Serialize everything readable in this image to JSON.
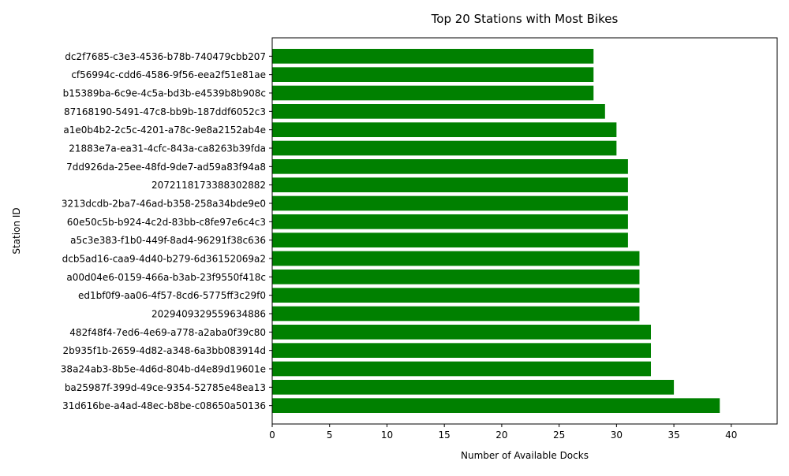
{
  "chart_data": {
    "type": "bar",
    "orientation": "horizontal",
    "title": "Top 20 Stations with Most Bikes",
    "xlabel": "Number of Available Docks",
    "ylabel": "Station ID",
    "xlim": [
      0,
      44
    ],
    "xticks": [
      "0",
      "5",
      "10",
      "15",
      "20",
      "25",
      "30",
      "35",
      "40"
    ],
    "grid": false,
    "bar_color": "#008000",
    "categories": [
      "31d616be-a4ad-48ec-b8be-c08650a50136",
      "ba25987f-399d-49ce-9354-52785e48ea13",
      "38a24ab3-8b5e-4d6d-804b-d4e89d19601e",
      "2b935f1b-2659-4d82-a348-6a3bb083914d",
      "482f48f4-7ed6-4e69-a778-a2aba0f39c80",
      "2029409329559634886",
      "ed1bf0f9-aa06-4f57-8cd6-5775ff3c29f0",
      "a00d04e6-0159-466a-b3ab-23f9550f418c",
      "dcb5ad16-caa9-4d40-b279-6d36152069a2",
      "a5c3e383-f1b0-449f-8ad4-96291f38c636",
      "60e50c5b-b924-4c2d-83bb-c8fe97e6c4c3",
      "3213dcdb-2ba7-46ad-b358-258a34bde9e0",
      "2072118173388302882",
      "7dd926da-25ee-48fd-9de7-ad59a83f94a8",
      "21883e7a-ea31-4cfc-843a-ca8263b39fda",
      "a1e0b4b2-2c5c-4201-a78c-9e8a2152ab4e",
      "87168190-5491-47c8-bb9b-187ddf6052c3",
      "b15389ba-6c9e-4c5a-bd3b-e4539b8b908c",
      "cf56994c-cdd6-4586-9f56-eea2f51e81ae",
      "dc2f7685-c3e3-4536-b78b-740479cbb207"
    ],
    "values": [
      39,
      35,
      33,
      33,
      33,
      32,
      32,
      32,
      32,
      31,
      31,
      31,
      31,
      31,
      30,
      30,
      29,
      28,
      28,
      28
    ]
  }
}
